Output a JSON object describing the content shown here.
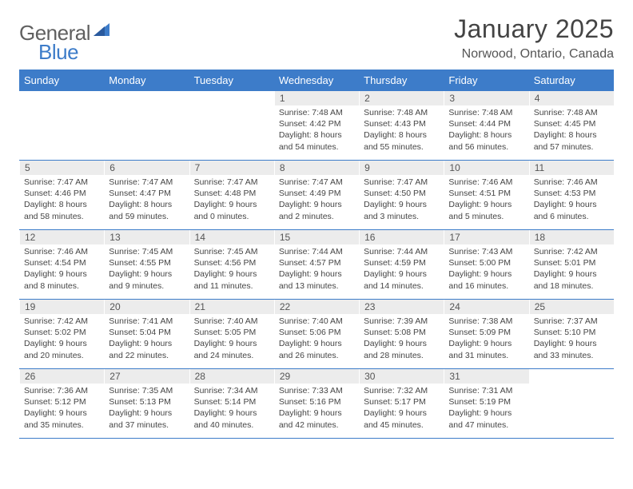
{
  "logo": {
    "text_a": "General",
    "text_b": "Blue",
    "text_color": "#606060",
    "accent_color": "#3d7cc9"
  },
  "title": "January 2025",
  "location": "Norwood, Ontario, Canada",
  "colors": {
    "header_bg": "#3d7cc9",
    "header_text": "#ffffff",
    "daynum_bg": "#ececec",
    "border": "#3d7cc9",
    "body_text": "#454545"
  },
  "day_names": [
    "Sunday",
    "Monday",
    "Tuesday",
    "Wednesday",
    "Thursday",
    "Friday",
    "Saturday"
  ],
  "weeks": [
    [
      {
        "empty": true
      },
      {
        "empty": true
      },
      {
        "empty": true
      },
      {
        "n": "1",
        "sr": "7:48 AM",
        "ss": "4:42 PM",
        "dl": "8 hours and 54 minutes."
      },
      {
        "n": "2",
        "sr": "7:48 AM",
        "ss": "4:43 PM",
        "dl": "8 hours and 55 minutes."
      },
      {
        "n": "3",
        "sr": "7:48 AM",
        "ss": "4:44 PM",
        "dl": "8 hours and 56 minutes."
      },
      {
        "n": "4",
        "sr": "7:48 AM",
        "ss": "4:45 PM",
        "dl": "8 hours and 57 minutes."
      }
    ],
    [
      {
        "n": "5",
        "sr": "7:47 AM",
        "ss": "4:46 PM",
        "dl": "8 hours and 58 minutes."
      },
      {
        "n": "6",
        "sr": "7:47 AM",
        "ss": "4:47 PM",
        "dl": "8 hours and 59 minutes."
      },
      {
        "n": "7",
        "sr": "7:47 AM",
        "ss": "4:48 PM",
        "dl": "9 hours and 0 minutes."
      },
      {
        "n": "8",
        "sr": "7:47 AM",
        "ss": "4:49 PM",
        "dl": "9 hours and 2 minutes."
      },
      {
        "n": "9",
        "sr": "7:47 AM",
        "ss": "4:50 PM",
        "dl": "9 hours and 3 minutes."
      },
      {
        "n": "10",
        "sr": "7:46 AM",
        "ss": "4:51 PM",
        "dl": "9 hours and 5 minutes."
      },
      {
        "n": "11",
        "sr": "7:46 AM",
        "ss": "4:53 PM",
        "dl": "9 hours and 6 minutes."
      }
    ],
    [
      {
        "n": "12",
        "sr": "7:46 AM",
        "ss": "4:54 PM",
        "dl": "9 hours and 8 minutes."
      },
      {
        "n": "13",
        "sr": "7:45 AM",
        "ss": "4:55 PM",
        "dl": "9 hours and 9 minutes."
      },
      {
        "n": "14",
        "sr": "7:45 AM",
        "ss": "4:56 PM",
        "dl": "9 hours and 11 minutes."
      },
      {
        "n": "15",
        "sr": "7:44 AM",
        "ss": "4:57 PM",
        "dl": "9 hours and 13 minutes."
      },
      {
        "n": "16",
        "sr": "7:44 AM",
        "ss": "4:59 PM",
        "dl": "9 hours and 14 minutes."
      },
      {
        "n": "17",
        "sr": "7:43 AM",
        "ss": "5:00 PM",
        "dl": "9 hours and 16 minutes."
      },
      {
        "n": "18",
        "sr": "7:42 AM",
        "ss": "5:01 PM",
        "dl": "9 hours and 18 minutes."
      }
    ],
    [
      {
        "n": "19",
        "sr": "7:42 AM",
        "ss": "5:02 PM",
        "dl": "9 hours and 20 minutes."
      },
      {
        "n": "20",
        "sr": "7:41 AM",
        "ss": "5:04 PM",
        "dl": "9 hours and 22 minutes."
      },
      {
        "n": "21",
        "sr": "7:40 AM",
        "ss": "5:05 PM",
        "dl": "9 hours and 24 minutes."
      },
      {
        "n": "22",
        "sr": "7:40 AM",
        "ss": "5:06 PM",
        "dl": "9 hours and 26 minutes."
      },
      {
        "n": "23",
        "sr": "7:39 AM",
        "ss": "5:08 PM",
        "dl": "9 hours and 28 minutes."
      },
      {
        "n": "24",
        "sr": "7:38 AM",
        "ss": "5:09 PM",
        "dl": "9 hours and 31 minutes."
      },
      {
        "n": "25",
        "sr": "7:37 AM",
        "ss": "5:10 PM",
        "dl": "9 hours and 33 minutes."
      }
    ],
    [
      {
        "n": "26",
        "sr": "7:36 AM",
        "ss": "5:12 PM",
        "dl": "9 hours and 35 minutes."
      },
      {
        "n": "27",
        "sr": "7:35 AM",
        "ss": "5:13 PM",
        "dl": "9 hours and 37 minutes."
      },
      {
        "n": "28",
        "sr": "7:34 AM",
        "ss": "5:14 PM",
        "dl": "9 hours and 40 minutes."
      },
      {
        "n": "29",
        "sr": "7:33 AM",
        "ss": "5:16 PM",
        "dl": "9 hours and 42 minutes."
      },
      {
        "n": "30",
        "sr": "7:32 AM",
        "ss": "5:17 PM",
        "dl": "9 hours and 45 minutes."
      },
      {
        "n": "31",
        "sr": "7:31 AM",
        "ss": "5:19 PM",
        "dl": "9 hours and 47 minutes."
      },
      {
        "empty": true
      }
    ]
  ],
  "labels": {
    "sunrise": "Sunrise:",
    "sunset": "Sunset:",
    "daylight": "Daylight:"
  }
}
